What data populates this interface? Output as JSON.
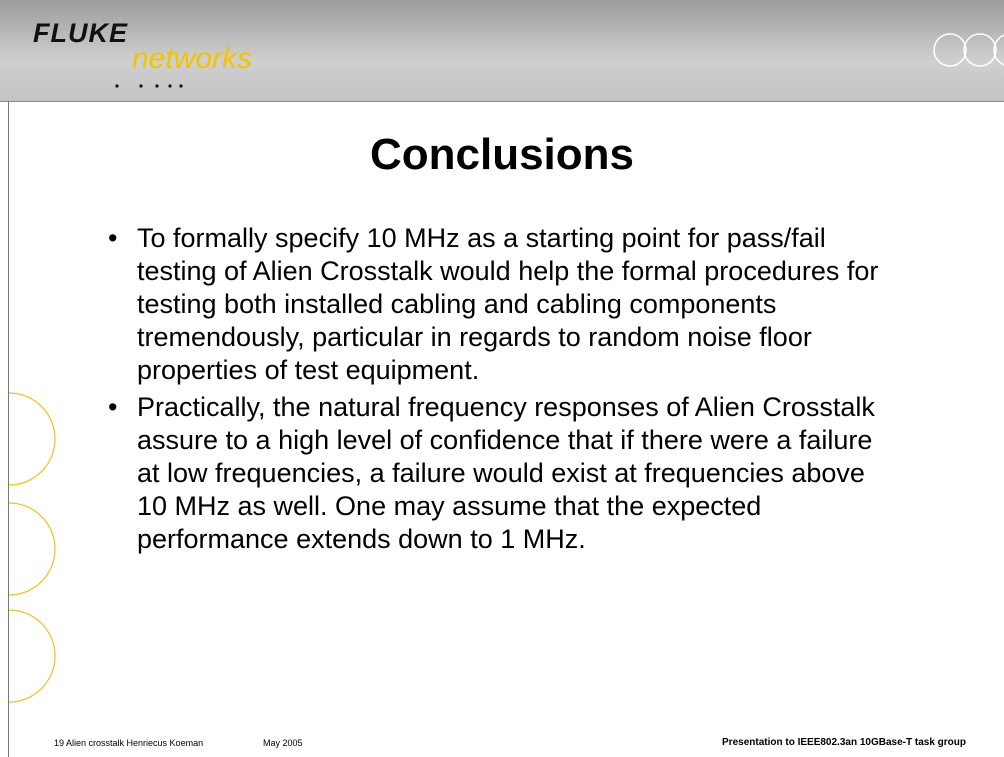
{
  "header": {
    "logo_top": "FLUKE",
    "logo_bottom": "networks"
  },
  "title": "Conclusions",
  "bullets": [
    "To formally specify 10 MHz as a starting point for pass/fail testing of Alien Crosstalk would help the formal procedures for testing both installed cabling and cabling components tremendously, particular in regards to random noise floor properties of test equipment.",
    "Practically, the natural frequency responses of Alien Crosstalk assure to a high level of confidence that if there were a failure at low frequencies, a failure would exist at frequencies above 10 MHz as well. One may assume that the expected performance extends down to 1 MHz."
  ],
  "footer": {
    "left": "19 Alien crosstalk Henriecus Koeman",
    "date": "May 2005",
    "right": "Presentation to IEEE802.3an 10GBase-T task group"
  }
}
